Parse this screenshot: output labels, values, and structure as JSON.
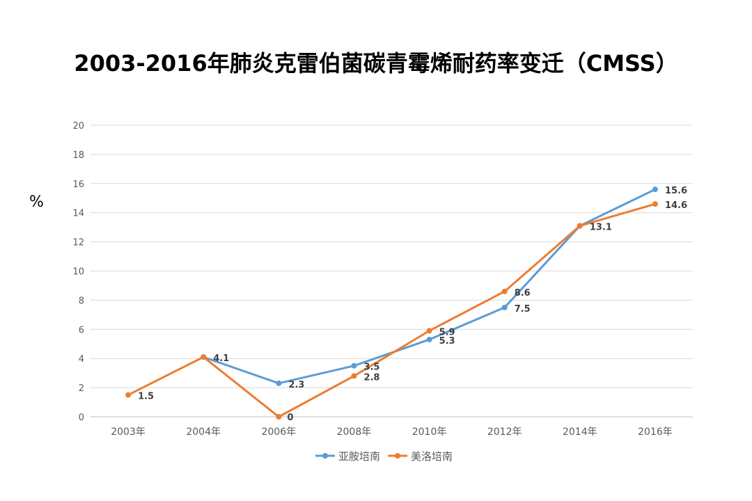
{
  "chart_data": {
    "type": "line",
    "title": "2003-2016年肺炎克雷伯菌碳青霉烯耐药率变迁（CMSS）",
    "ylabel": "%",
    "ylim": [
      0,
      20
    ],
    "yticks": [
      0,
      2,
      4,
      6,
      8,
      10,
      12,
      14,
      16,
      18,
      20
    ],
    "categories": [
      "2003年",
      "2004年",
      "2006年",
      "2008年",
      "2010年",
      "2012年",
      "2014年",
      "2016年"
    ],
    "grid": true,
    "legend_position": "bottom",
    "series": [
      {
        "name": "亚胺培南",
        "color": "#5B9BD5",
        "values": [
          null,
          4.1,
          2.3,
          3.5,
          5.3,
          7.5,
          13.1,
          15.6
        ],
        "labels": [
          "",
          "",
          "2.3",
          "3.5",
          "5.3",
          "7.5",
          "",
          "15.6"
        ]
      },
      {
        "name": "美洛培南",
        "color": "#ED7D31",
        "values": [
          1.5,
          4.1,
          0,
          2.8,
          5.9,
          8.6,
          13.1,
          14.6
        ],
        "labels": [
          "1.5",
          "4.1",
          "0",
          "2.8",
          "5.9",
          "8.6",
          "13.1",
          "14.6"
        ]
      }
    ]
  }
}
